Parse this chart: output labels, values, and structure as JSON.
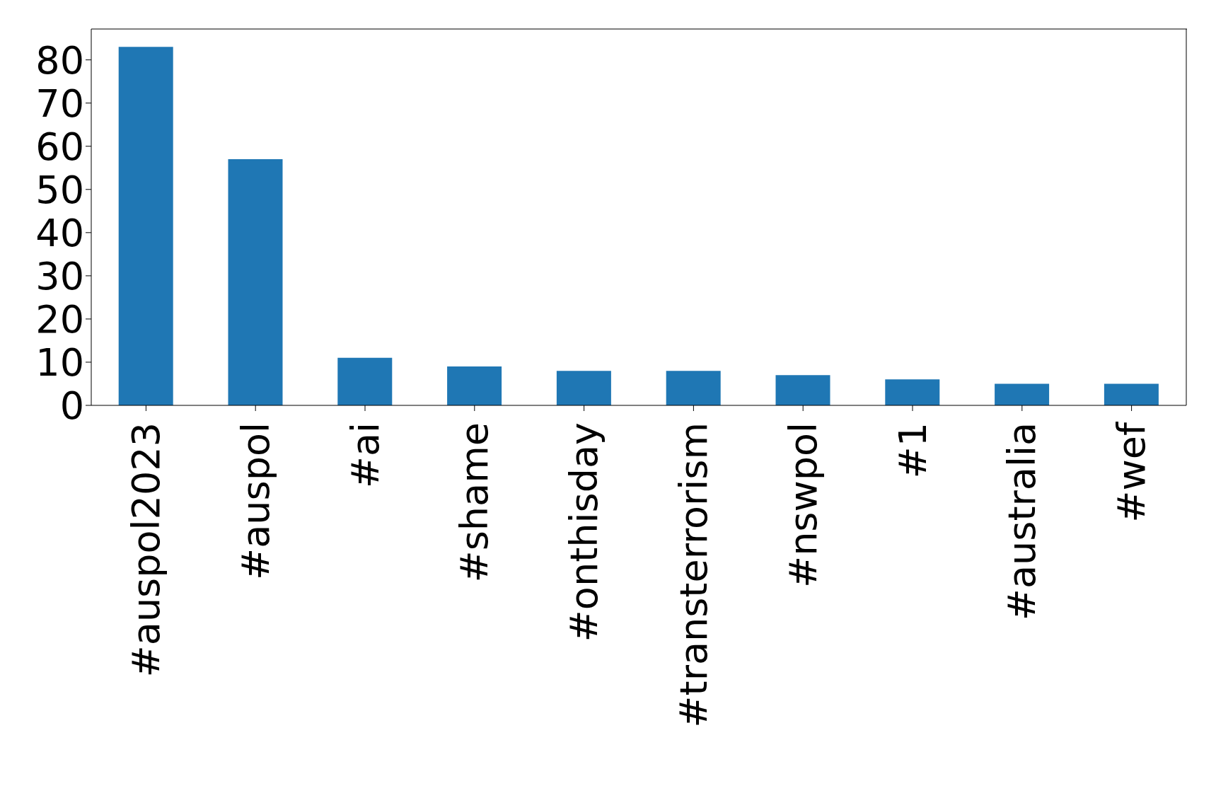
{
  "chart_data": {
    "type": "bar",
    "categories": [
      "#auspol2023",
      "#auspol",
      "#ai",
      "#shame",
      "#onthisday",
      "#transterrorism",
      "#nswpol",
      "#1",
      "#australia",
      "#wef"
    ],
    "values": [
      83,
      57,
      11,
      9,
      8,
      8,
      7,
      6,
      5,
      5
    ],
    "color": "#1f77b4",
    "ylim": [
      0,
      87.15
    ],
    "yticks": [
      0,
      10,
      20,
      30,
      40,
      50,
      60,
      70,
      80
    ],
    "grid": false,
    "legend": false
  }
}
